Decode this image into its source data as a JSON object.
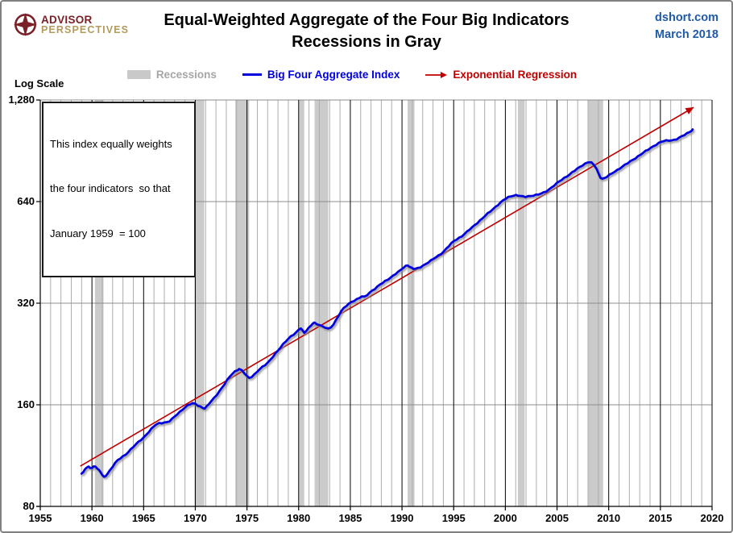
{
  "header": {
    "logo": {
      "icon": "compass-icon",
      "line1": "ADVISOR",
      "line2": "PERSPECTIVES"
    },
    "source": "dshort.com",
    "date": "March 2018"
  },
  "legend": {
    "items": [
      {
        "label": "Recessions",
        "swatch": "gray-band",
        "color": "#C9C9C9",
        "text_color": "#A6A6A6"
      },
      {
        "label": "Big Four Aggregate Index",
        "swatch": "blue-line",
        "color": "#0000DC",
        "text_color": "#0000E0"
      },
      {
        "label": "Exponential Regression",
        "swatch": "red-arrow",
        "color": "#C00000",
        "text_color": "#C00000"
      }
    ]
  },
  "annotation": {
    "line1": "This index equally weights",
    "line2": "the four indicators  so that",
    "line3": "January 1959  = 100"
  },
  "chart_data": {
    "type": "line",
    "title": "Equal-Weighted Aggregate of the Four Big Indicators",
    "subtitle": "Recessions in Gray",
    "scale_label": "Log Scale",
    "log_scale": true,
    "xlim": [
      1955,
      2020
    ],
    "ylim": [
      80,
      1280
    ],
    "x_ticks": [
      1955,
      1960,
      1965,
      1970,
      1975,
      1980,
      1985,
      1990,
      1995,
      2000,
      2005,
      2010,
      2015,
      2020
    ],
    "y_ticks": [
      {
        "label": "1,280",
        "value": 1280
      },
      {
        "label": "640",
        "value": 640
      },
      {
        "label": "320",
        "value": 320
      },
      {
        "label": "160",
        "value": 160
      },
      {
        "label": "80",
        "value": 80
      }
    ],
    "grid": {
      "minor_x_interval": 1,
      "minor_color": "#ADADAD",
      "major_color": "#000000",
      "h_color": "#8C8C8C"
    },
    "recessions": {
      "color": "#CBCBCB",
      "periods": [
        [
          1960.29,
          1961.12
        ],
        [
          1969.92,
          1970.87
        ],
        [
          1973.87,
          1975.21
        ],
        [
          1980.04,
          1980.54
        ],
        [
          1981.54,
          1982.87
        ],
        [
          1990.54,
          1991.21
        ],
        [
          2001.21,
          2001.87
        ],
        [
          2007.96,
          2009.46
        ]
      ]
    },
    "series": [
      {
        "name": "Exponential Regression",
        "color": "#C00000",
        "width": 1.6,
        "arrow_end": true,
        "points": [
          [
            1958.92,
            105.5
          ],
          [
            2018.17,
            1215
          ]
        ]
      },
      {
        "name": "Big Four Aggregate Index",
        "color": "#0000DC",
        "width": 2.8,
        "shadow": true,
        "points": [
          [
            1959.0,
            100
          ],
          [
            1959.17,
            101.5
          ],
          [
            1959.33,
            103
          ],
          [
            1959.5,
            104.5
          ],
          [
            1959.67,
            105
          ],
          [
            1959.83,
            103.5
          ],
          [
            1960.0,
            104
          ],
          [
            1960.17,
            105
          ],
          [
            1960.33,
            105
          ],
          [
            1960.5,
            104
          ],
          [
            1960.67,
            102.5
          ],
          [
            1960.83,
            101
          ],
          [
            1961.0,
            99
          ],
          [
            1961.17,
            97.5
          ],
          [
            1961.33,
            98.5
          ],
          [
            1961.5,
            100
          ],
          [
            1961.75,
            102.5
          ],
          [
            1962.0,
            105
          ],
          [
            1962.25,
            107.5
          ],
          [
            1962.5,
            109.5
          ],
          [
            1962.75,
            111
          ],
          [
            1963.0,
            112.5
          ],
          [
            1963.25,
            114
          ],
          [
            1963.5,
            116
          ],
          [
            1963.75,
            118
          ],
          [
            1964.0,
            120
          ],
          [
            1964.25,
            122
          ],
          [
            1964.5,
            124
          ],
          [
            1964.75,
            126
          ],
          [
            1965.0,
            128
          ],
          [
            1965.25,
            130.5
          ],
          [
            1965.5,
            133
          ],
          [
            1965.75,
            135.5
          ],
          [
            1966.0,
            138
          ],
          [
            1966.25,
            140
          ],
          [
            1966.5,
            141
          ],
          [
            1966.75,
            141.5
          ],
          [
            1967.0,
            142
          ],
          [
            1967.25,
            142
          ],
          [
            1967.5,
            143
          ],
          [
            1967.75,
            145
          ],
          [
            1968.0,
            147.5
          ],
          [
            1968.25,
            150
          ],
          [
            1968.5,
            152.5
          ],
          [
            1968.75,
            155
          ],
          [
            1969.0,
            157
          ],
          [
            1969.25,
            159
          ],
          [
            1969.5,
            160.5
          ],
          [
            1969.75,
            161.5
          ],
          [
            1970.0,
            161
          ],
          [
            1970.25,
            159.5
          ],
          [
            1970.5,
            158
          ],
          [
            1970.75,
            156.5
          ],
          [
            1970.92,
            156
          ],
          [
            1971.08,
            157.5
          ],
          [
            1971.33,
            161
          ],
          [
            1971.58,
            164.5
          ],
          [
            1971.83,
            168
          ],
          [
            1972.08,
            171.5
          ],
          [
            1972.33,
            175.5
          ],
          [
            1972.58,
            179.5
          ],
          [
            1972.83,
            184
          ],
          [
            1973.08,
            189
          ],
          [
            1973.33,
            194
          ],
          [
            1973.58,
            198
          ],
          [
            1973.83,
            201
          ],
          [
            1974.08,
            203
          ],
          [
            1974.25,
            204
          ],
          [
            1974.5,
            202
          ],
          [
            1974.75,
            198.5
          ],
          [
            1975.0,
            194.5
          ],
          [
            1975.21,
            192.5
          ],
          [
            1975.46,
            194
          ],
          [
            1975.71,
            196.5
          ],
          [
            1976.0,
            200.5
          ],
          [
            1976.25,
            204
          ],
          [
            1976.5,
            207
          ],
          [
            1976.75,
            210
          ],
          [
            1977.0,
            213.5
          ],
          [
            1977.25,
            217.5
          ],
          [
            1977.5,
            222
          ],
          [
            1977.75,
            226.5
          ],
          [
            1978.0,
            231
          ],
          [
            1978.25,
            236.5
          ],
          [
            1978.5,
            242
          ],
          [
            1978.75,
            247
          ],
          [
            1979.0,
            251.5
          ],
          [
            1979.25,
            255
          ],
          [
            1979.5,
            258
          ],
          [
            1979.75,
            261.5
          ],
          [
            1980.0,
            266.5
          ],
          [
            1980.21,
            270
          ],
          [
            1980.37,
            266
          ],
          [
            1980.54,
            262
          ],
          [
            1980.75,
            265.5
          ],
          [
            1980.96,
            269.5
          ],
          [
            1981.17,
            274
          ],
          [
            1981.42,
            279
          ],
          [
            1981.54,
            280
          ],
          [
            1981.79,
            278
          ],
          [
            1982.04,
            275.5
          ],
          [
            1982.29,
            273.5
          ],
          [
            1982.54,
            271
          ],
          [
            1982.87,
            268
          ],
          [
            1983.12,
            271
          ],
          [
            1983.37,
            277
          ],
          [
            1983.62,
            285.5
          ],
          [
            1983.87,
            294.5
          ],
          [
            1984.12,
            303
          ],
          [
            1984.37,
            309
          ],
          [
            1984.62,
            314
          ],
          [
            1984.87,
            318.5
          ],
          [
            1985.12,
            323
          ],
          [
            1985.37,
            326
          ],
          [
            1985.62,
            329
          ],
          [
            1985.87,
            332
          ],
          [
            1986.12,
            335
          ],
          [
            1986.37,
            333.5
          ],
          [
            1986.62,
            338
          ],
          [
            1986.87,
            344
          ],
          [
            1987.12,
            349
          ],
          [
            1987.37,
            353.5
          ],
          [
            1987.62,
            358
          ],
          [
            1987.87,
            363
          ],
          [
            1988.12,
            367
          ],
          [
            1988.37,
            371.5
          ],
          [
            1988.62,
            376
          ],
          [
            1988.87,
            381
          ],
          [
            1989.12,
            386
          ],
          [
            1989.37,
            391
          ],
          [
            1989.62,
            395.5
          ],
          [
            1989.87,
            400.5
          ],
          [
            1990.12,
            407
          ],
          [
            1990.37,
            412.5
          ],
          [
            1990.54,
            415
          ],
          [
            1990.75,
            411
          ],
          [
            1990.96,
            406.5
          ],
          [
            1991.12,
            404.5
          ],
          [
            1991.29,
            404
          ],
          [
            1991.54,
            406
          ],
          [
            1991.79,
            409.5
          ],
          [
            1992.04,
            414
          ],
          [
            1992.29,
            418.5
          ],
          [
            1992.54,
            423
          ],
          [
            1992.79,
            427.5
          ],
          [
            1993.04,
            432.5
          ],
          [
            1993.29,
            437.5
          ],
          [
            1993.54,
            443
          ],
          [
            1993.79,
            449
          ],
          [
            1994.04,
            456
          ],
          [
            1994.29,
            464
          ],
          [
            1994.54,
            472.5
          ],
          [
            1994.79,
            481
          ],
          [
            1995.04,
            489
          ],
          [
            1995.29,
            495
          ],
          [
            1995.54,
            500.5
          ],
          [
            1995.79,
            506
          ],
          [
            1996.04,
            513
          ],
          [
            1996.29,
            520.5
          ],
          [
            1996.54,
            528.5
          ],
          [
            1996.79,
            536.5
          ],
          [
            1997.04,
            545
          ],
          [
            1997.29,
            554
          ],
          [
            1997.54,
            562.5
          ],
          [
            1997.79,
            571
          ],
          [
            1998.04,
            580
          ],
          [
            1998.29,
            589
          ],
          [
            1998.54,
            598
          ],
          [
            1998.79,
            608
          ],
          [
            1999.04,
            617.5
          ],
          [
            1999.29,
            627
          ],
          [
            1999.54,
            636
          ],
          [
            1999.79,
            645
          ],
          [
            2000.04,
            652.5
          ],
          [
            2000.29,
            659
          ],
          [
            2000.54,
            664
          ],
          [
            2000.79,
            667.5
          ],
          [
            2001.04,
            669
          ],
          [
            2001.21,
            667.5
          ],
          [
            2001.46,
            664
          ],
          [
            2001.71,
            661.5
          ],
          [
            2001.96,
            661
          ],
          [
            2002.21,
            663.5
          ],
          [
            2002.46,
            666
          ],
          [
            2002.71,
            668
          ],
          [
            2002.96,
            669.5
          ],
          [
            2003.21,
            671.5
          ],
          [
            2003.46,
            675
          ],
          [
            2003.71,
            680
          ],
          [
            2003.96,
            687
          ],
          [
            2004.21,
            695.5
          ],
          [
            2004.46,
            704.5
          ],
          [
            2004.71,
            714
          ],
          [
            2004.96,
            723.5
          ],
          [
            2005.21,
            733
          ],
          [
            2005.46,
            742.5
          ],
          [
            2005.71,
            752
          ],
          [
            2005.96,
            761.5
          ],
          [
            2006.21,
            771
          ],
          [
            2006.46,
            780.5
          ],
          [
            2006.71,
            790
          ],
          [
            2006.96,
            800
          ],
          [
            2007.21,
            810
          ],
          [
            2007.46,
            820
          ],
          [
            2007.71,
            829.5
          ],
          [
            2007.96,
            837
          ],
          [
            2008.12,
            838
          ],
          [
            2008.33,
            833
          ],
          [
            2008.58,
            821
          ],
          [
            2008.83,
            799
          ],
          [
            2009.04,
            771
          ],
          [
            2009.21,
            755
          ],
          [
            2009.37,
            748
          ],
          [
            2009.58,
            750.5
          ],
          [
            2009.83,
            757.5
          ],
          [
            2010.08,
            766.5
          ],
          [
            2010.33,
            776
          ],
          [
            2010.58,
            785.5
          ],
          [
            2010.83,
            794.5
          ],
          [
            2011.08,
            803.5
          ],
          [
            2011.33,
            812.5
          ],
          [
            2011.58,
            821.5
          ],
          [
            2011.83,
            831
          ],
          [
            2012.08,
            841
          ],
          [
            2012.33,
            851.5
          ],
          [
            2012.58,
            861.5
          ],
          [
            2012.83,
            871.5
          ],
          [
            2013.08,
            881.5
          ],
          [
            2013.33,
            891.5
          ],
          [
            2013.58,
            902
          ],
          [
            2013.83,
            913
          ],
          [
            2014.08,
            924
          ],
          [
            2014.33,
            934.5
          ],
          [
            2014.58,
            944.5
          ],
          [
            2014.83,
            953.5
          ],
          [
            2015.08,
            961
          ],
          [
            2015.33,
            966.5
          ],
          [
            2015.58,
            970
          ],
          [
            2015.83,
            972
          ],
          [
            2016.08,
            973
          ],
          [
            2016.33,
            975
          ],
          [
            2016.58,
            980
          ],
          [
            2016.83,
            988
          ],
          [
            2017.08,
            998
          ],
          [
            2017.33,
            1008.5
          ],
          [
            2017.58,
            1019.5
          ],
          [
            2017.83,
            1031
          ],
          [
            2018.04,
            1041
          ],
          [
            2018.12,
            1044
          ]
        ]
      }
    ]
  }
}
